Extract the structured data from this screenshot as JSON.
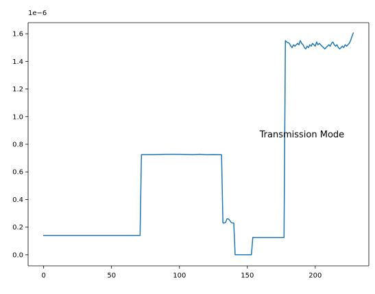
{
  "chart_data": {
    "type": "line",
    "title": "",
    "xlabel": "",
    "ylabel": "",
    "xlim": [
      -11.45,
      239.45
    ],
    "ylim": [
      -0.08,
      1.68
    ],
    "y_exponent_label": "1e−6",
    "x_ticks": [
      0,
      50,
      100,
      150,
      200
    ],
    "x_tick_labels": [
      "0",
      "50",
      "100",
      "150",
      "200"
    ],
    "y_ticks": [
      0.0,
      0.2,
      0.4,
      0.6,
      0.8,
      1.0,
      1.2,
      1.4,
      1.6
    ],
    "y_tick_labels": [
      "0.0",
      "0.2",
      "0.4",
      "0.6",
      "0.8",
      "1.0",
      "1.2",
      "1.4",
      "1.6"
    ],
    "grid": false,
    "legend": "none",
    "annotation": {
      "text": "Transmission Mode",
      "x": 159,
      "y": 0.85
    },
    "series": [
      {
        "color": "#1f77b4",
        "x": [
          0,
          71,
          72,
          80,
          90,
          100,
          110,
          115,
          120,
          125,
          131,
          132,
          133,
          134,
          135,
          136,
          137,
          138,
          139,
          140,
          141,
          142,
          145,
          150,
          152,
          153,
          154,
          160,
          170,
          177,
          178,
          179,
          180,
          181,
          182,
          183,
          184,
          185,
          186,
          187,
          188,
          189,
          190,
          191,
          192,
          193,
          194,
          195,
          196,
          197,
          198,
          199,
          200,
          201,
          202,
          203,
          204,
          205,
          206,
          207,
          208,
          209,
          210,
          211,
          212,
          213,
          214,
          215,
          216,
          217,
          218,
          219,
          220,
          221,
          222,
          223,
          224,
          225,
          226,
          227,
          228
        ],
        "values": [
          0.14,
          0.14,
          0.725,
          0.725,
          0.727,
          0.727,
          0.725,
          0.727,
          0.724,
          0.725,
          0.724,
          0.23,
          0.23,
          0.235,
          0.26,
          0.26,
          0.25,
          0.235,
          0.23,
          0.23,
          0.0,
          0.0,
          0.0,
          0.0,
          0.0,
          0.0,
          0.125,
          0.125,
          0.125,
          0.125,
          1.55,
          1.54,
          1.535,
          1.53,
          1.51,
          1.5,
          1.52,
          1.51,
          1.52,
          1.53,
          1.52,
          1.55,
          1.53,
          1.52,
          1.5,
          1.49,
          1.51,
          1.5,
          1.52,
          1.51,
          1.53,
          1.52,
          1.51,
          1.54,
          1.52,
          1.53,
          1.52,
          1.51,
          1.5,
          1.49,
          1.5,
          1.51,
          1.52,
          1.51,
          1.53,
          1.54,
          1.52,
          1.51,
          1.52,
          1.5,
          1.49,
          1.5,
          1.51,
          1.5,
          1.52,
          1.51,
          1.52,
          1.53,
          1.55,
          1.58,
          1.605
        ]
      }
    ]
  }
}
